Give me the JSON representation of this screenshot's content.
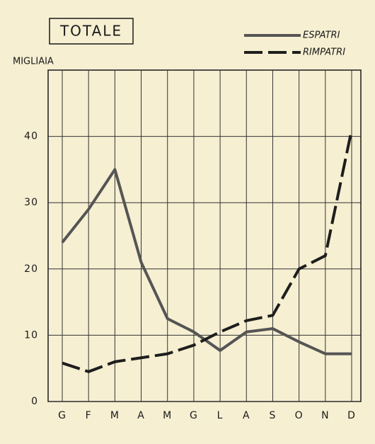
{
  "chart_data": {
    "type": "line",
    "title": "TOTALE",
    "y_label": "MIGLIAIA",
    "categories": [
      "G",
      "F",
      "M",
      "A",
      "M",
      "G",
      "L",
      "A",
      "S",
      "O",
      "N",
      "D"
    ],
    "series": [
      {
        "name": "ESPATRI",
        "color": "#555555",
        "dash": "solid",
        "values": [
          24,
          29,
          35,
          21,
          12.5,
          10.5,
          7.7,
          10.5,
          11,
          9,
          7.2,
          7.2
        ]
      },
      {
        "name": "RIMPATRI",
        "color": "#1e1e1e",
        "dash": "dashed",
        "values": [
          5.8,
          4.5,
          6,
          6.6,
          7.2,
          8.5,
          10.5,
          12.2,
          13,
          20,
          22,
          41
        ]
      }
    ],
    "ylim": [
      0,
      50
    ],
    "yticks": [
      0,
      10,
      20,
      30,
      40
    ],
    "grid": true,
    "legend": "top-right"
  }
}
